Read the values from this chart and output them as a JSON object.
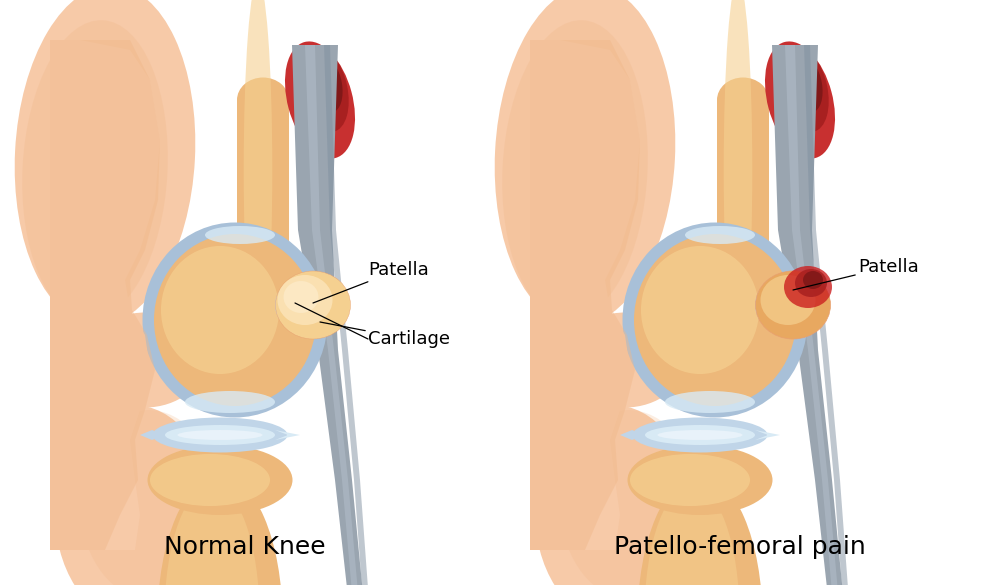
{
  "title_left": "Normal Knee",
  "title_right": "Patello-femoral pain",
  "label_patella_left": "Patella",
  "label_cartilage_left": "Cartilage",
  "label_patella_right": "Patella",
  "bg_color": "#ffffff",
  "skin_light": "#F7CAA8",
  "skin_mid": "#F0B88A",
  "skin_shadow": "#E8A070",
  "bone_color": "#EDB87A",
  "bone_mid": "#E8A860",
  "bone_light": "#F5D090",
  "cart_outer": "#A8C0D8",
  "cart_mid": "#C0D5E8",
  "cart_light": "#D8EAF5",
  "cart_inner_light": "#E8F2FA",
  "tendon_gray": "#9AA5B0",
  "tendon_mid": "#8090A0",
  "tendon_light": "#B0BCC8",
  "tendon_dark": "#6A7880",
  "muscle_dark": "#801818",
  "muscle_mid": "#A82020",
  "muscle_light": "#C83030",
  "pain_bright": "#CC2020",
  "pain_dark": "#881515",
  "title_fontsize": 18,
  "label_fontsize": 13
}
